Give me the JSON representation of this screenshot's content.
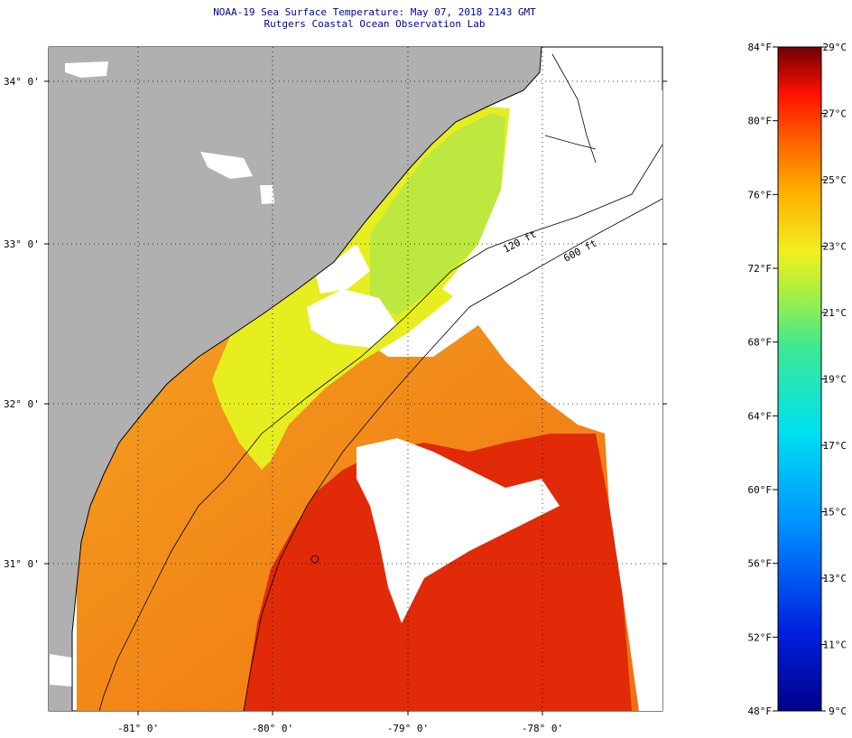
{
  "header": {
    "title": "NOAA-19 Sea Surface Temperature:  May 07, 2018 2143 GMT",
    "subtitle": "Rutgers Coastal Ocean Observation Lab"
  },
  "map": {
    "lat_labels": [
      "34° 0'",
      "33° 0'",
      "32° 0'",
      "31° 0'"
    ],
    "lon_labels": [
      "-81° 0'",
      "-80° 0'",
      "-79° 0'",
      "-78° 0'"
    ],
    "isobath_labels": [
      "120 ft",
      "600 ft"
    ]
  },
  "colorbar": {
    "fahrenheit_labels": [
      "84°F",
      "80°F",
      "76°F",
      "72°F",
      "68°F",
      "64°F",
      "60°F",
      "56°F",
      "52°F",
      "48°F"
    ],
    "celsius_labels": [
      "29°C",
      "27°C",
      "25°C",
      "23°C",
      "21°C",
      "19°C",
      "17°C",
      "15°C",
      "13°C",
      "11°C",
      "9°C"
    ]
  },
  "colors": {
    "land": "#b0b0b0",
    "title": "#0000a0",
    "sst_warm": "#e02000",
    "sst_orange": "#f06a10",
    "sst_yellow": "#e8f020",
    "sst_green": "#b8ec30"
  }
}
